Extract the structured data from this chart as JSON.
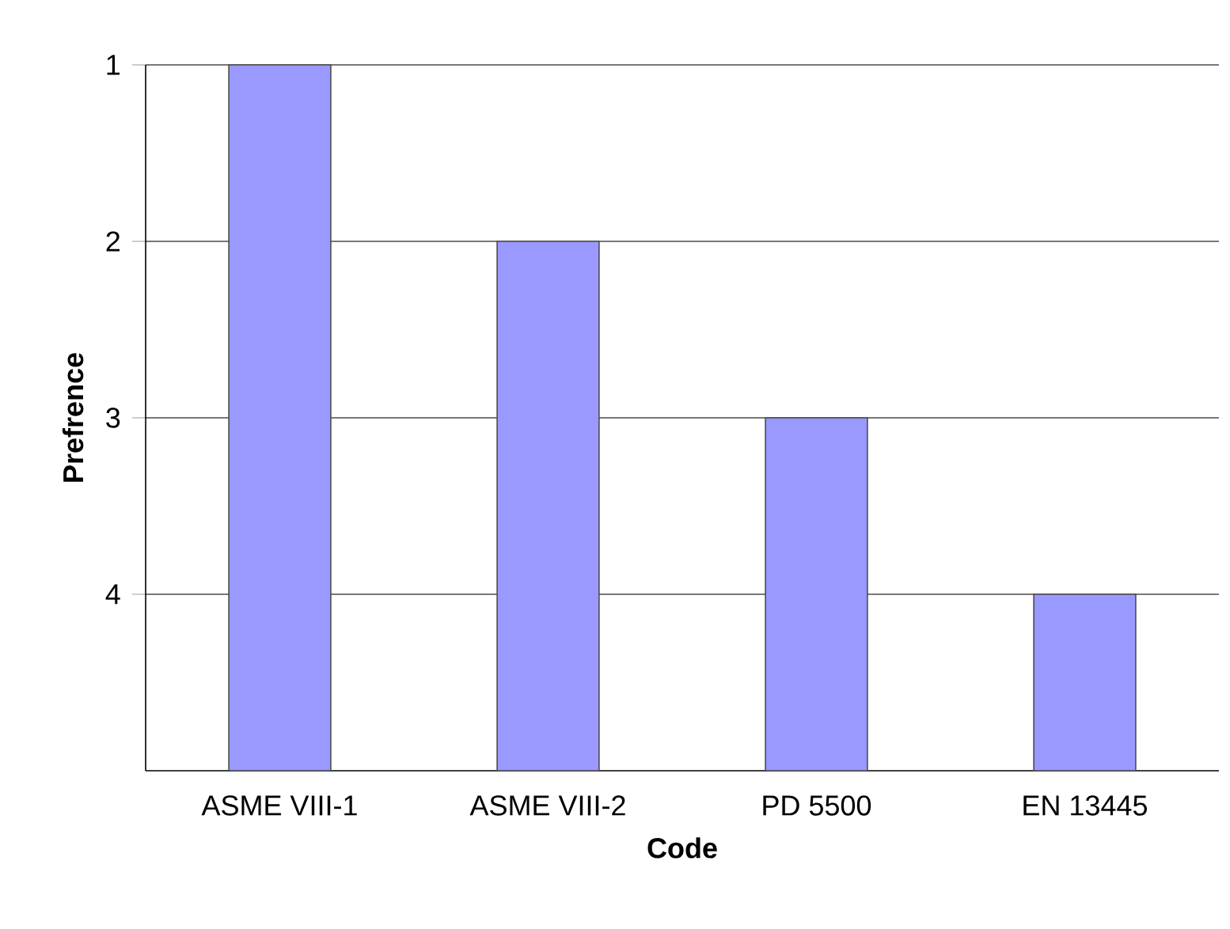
{
  "chart_data": {
    "type": "bar",
    "xlabel": "Code",
    "ylabel": "Prefrence",
    "categories": [
      "ASME VIII-1",
      "ASME VIII-2",
      "PD 5500",
      "EN 13445"
    ],
    "base": [
      5,
      5,
      5,
      5
    ],
    "values": [
      -4,
      -3,
      -2,
      -1
    ],
    "color": "#9999ff",
    "ylim": [
      5,
      1
    ],
    "yticks": [
      1,
      2,
      3,
      4
    ],
    "grid": "y"
  }
}
